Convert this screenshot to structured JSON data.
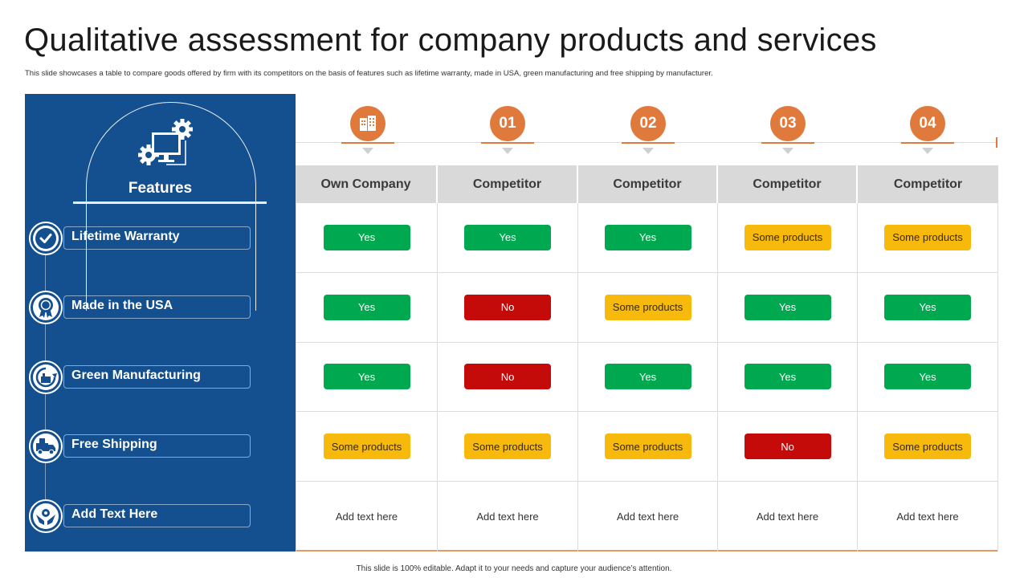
{
  "title": "Qualitative assessment for company products and services",
  "subtitle": "This slide showcases a table to compare goods offered by firm with its competitors on the basis of features such as lifetime warranty, made in USA, green manufacturing and free shipping by manufacturer.",
  "footer": "This slide is 100% editable. Adapt it to your needs and capture your audience’s attention.",
  "panel": {
    "heading": "Features",
    "heading_icon": "computer-gear-icon",
    "features": [
      {
        "label": "Lifetime Warranty",
        "icon": "checkmark-icon"
      },
      {
        "label": "Made in the USA",
        "icon": "award-ribbon-icon"
      },
      {
        "label": "Green Manufacturing",
        "icon": "recycle-factory-icon"
      },
      {
        "label": "Free Shipping",
        "icon": "delivery-truck-icon"
      },
      {
        "label": "Add Text Here",
        "icon": "hands-gear-icon"
      }
    ]
  },
  "columns": [
    {
      "marker": "",
      "marker_icon": "building-icon",
      "header": "Own Company"
    },
    {
      "marker": "01",
      "header": "Competitor"
    },
    {
      "marker": "02",
      "header": "Competitor"
    },
    {
      "marker": "03",
      "header": "Competitor"
    },
    {
      "marker": "04",
      "header": "Competitor"
    }
  ],
  "rows": [
    [
      {
        "text": "Yes",
        "status": "yes"
      },
      {
        "text": "Yes",
        "status": "yes"
      },
      {
        "text": "Yes",
        "status": "yes"
      },
      {
        "text": "Some products",
        "status": "some"
      },
      {
        "text": "Some products",
        "status": "some"
      }
    ],
    [
      {
        "text": "Yes",
        "status": "yes"
      },
      {
        "text": "No",
        "status": "no"
      },
      {
        "text": "Some products",
        "status": "some"
      },
      {
        "text": "Yes",
        "status": "yes"
      },
      {
        "text": "Yes",
        "status": "yes"
      }
    ],
    [
      {
        "text": "Yes",
        "status": "yes"
      },
      {
        "text": "No",
        "status": "no"
      },
      {
        "text": "Yes",
        "status": "yes"
      },
      {
        "text": "Yes",
        "status": "yes"
      },
      {
        "text": "Yes",
        "status": "yes"
      }
    ],
    [
      {
        "text": "Some products",
        "status": "some"
      },
      {
        "text": "Some products",
        "status": "some"
      },
      {
        "text": "Some products",
        "status": "some"
      },
      {
        "text": "No",
        "status": "no"
      },
      {
        "text": "Some products",
        "status": "some"
      }
    ],
    [
      {
        "text": "Add text here",
        "status": "plain"
      },
      {
        "text": "Add text here",
        "status": "plain"
      },
      {
        "text": "Add text here",
        "status": "plain"
      },
      {
        "text": "Add text here",
        "status": "plain"
      },
      {
        "text": "Add text here",
        "status": "plain"
      }
    ]
  ],
  "colors": {
    "panel_blue": "#14508f",
    "accent_orange": "#e07a3c",
    "yes_green": "#00a84f",
    "no_red": "#c50a0a",
    "some_yellow": "#f7b90c",
    "header_gray": "#d9d9d9"
  }
}
